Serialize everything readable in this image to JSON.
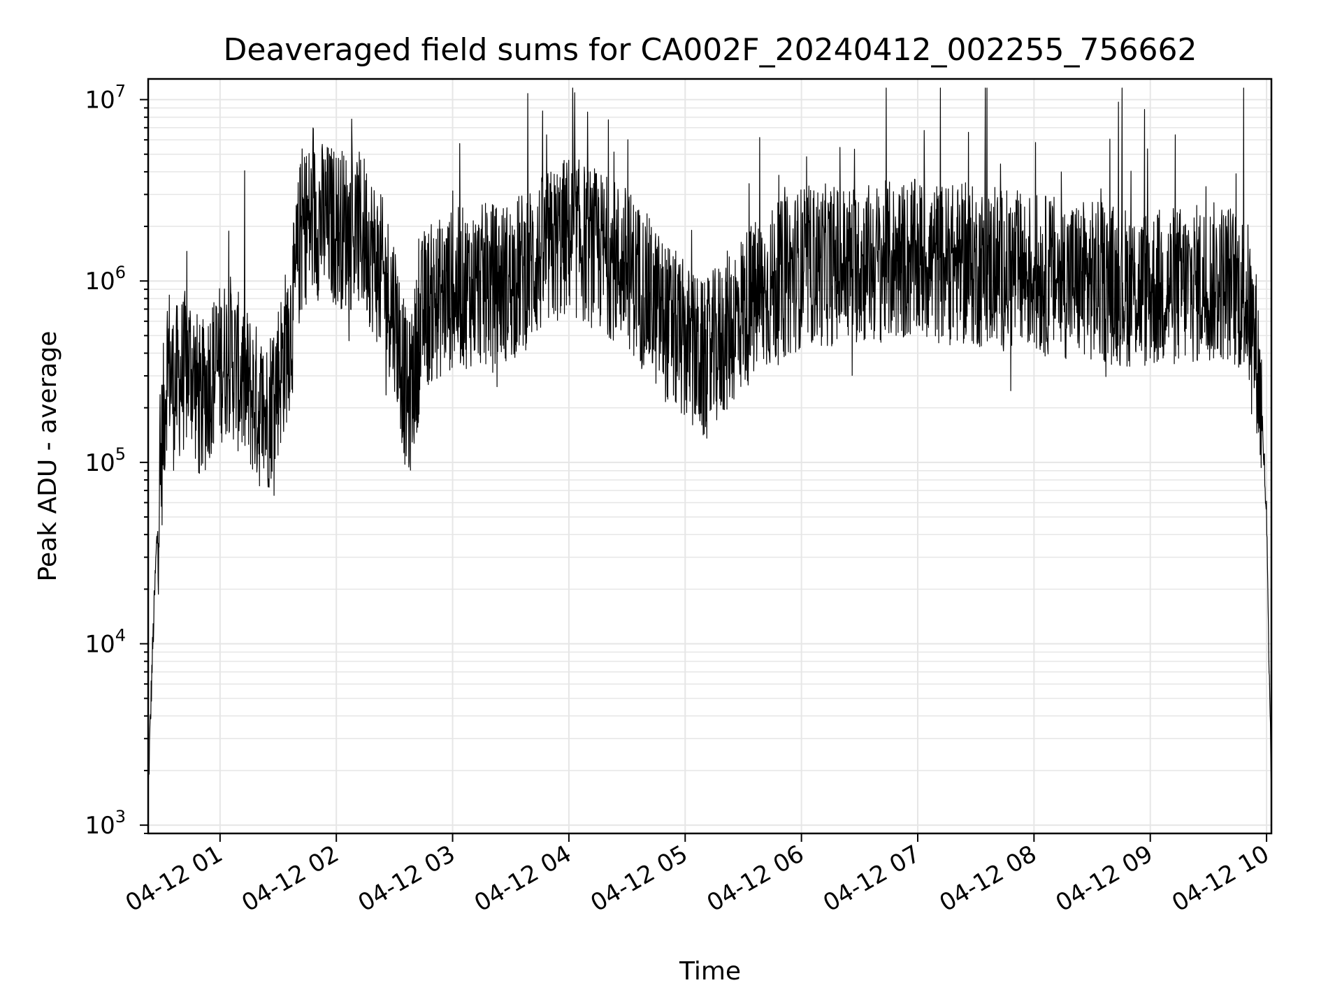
{
  "chart_data": {
    "type": "line",
    "title": "Deaveraged field sums for CA002F_20240412_002255_756662",
    "xlabel": "Time",
    "ylabel": "Peak ADU - average",
    "yscale": "log",
    "ylim": [
      900,
      13000000
    ],
    "xlim": [
      "2024-04-12 00:22:55",
      "2024-04-12 10:02:30"
    ],
    "grid": true,
    "series_color": "#000000",
    "x_tick_labels": [
      "04-12 01",
      "04-12 02",
      "04-12 03",
      "04-12 04",
      "04-12 05",
      "04-12 06",
      "04-12 07",
      "04-12 08",
      "04-12 09",
      "04-12 10"
    ],
    "x_tick_values": [
      "2024-04-12 01:00",
      "2024-04-12 02:00",
      "2024-04-12 03:00",
      "2024-04-12 04:00",
      "2024-04-12 05:00",
      "2024-04-12 06:00",
      "2024-04-12 07:00",
      "2024-04-12 08:00",
      "2024-04-12 09:00",
      "2024-04-12 10:00"
    ],
    "y_tick_values": [
      1000,
      10000,
      100000,
      1000000,
      10000000
    ],
    "y_tick_labels": [
      {
        "base": "10",
        "exp": "3"
      },
      {
        "base": "10",
        "exp": "4"
      },
      {
        "base": "10",
        "exp": "5"
      },
      {
        "base": "10",
        "exp": "6"
      },
      {
        "base": "10",
        "exp": "7"
      }
    ],
    "series": [
      {
        "x": [
          "2024-04-12 00:22:55",
          "2024-04-12 00:25",
          "2024-04-12 00:27",
          "2024-04-12 00:30",
          "2024-04-12 00:33",
          "2024-04-12 00:36",
          "2024-04-12 00:40",
          "2024-04-12 00:45",
          "2024-04-12 00:50",
          "2024-04-12 00:55",
          "2024-04-12 01:00",
          "2024-04-12 01:05",
          "2024-04-12 01:10",
          "2024-04-12 01:15",
          "2024-04-12 01:20",
          "2024-04-12 01:24",
          "2024-04-12 01:28",
          "2024-04-12 01:32",
          "2024-04-12 01:37",
          "2024-04-12 01:42",
          "2024-04-12 01:50",
          "2024-04-12 02:00",
          "2024-04-12 02:15",
          "2024-04-12 02:30",
          "2024-04-12 02:37",
          "2024-04-12 02:45",
          "2024-04-12 03:00",
          "2024-04-12 03:30",
          "2024-04-12 04:00",
          "2024-04-12 04:30",
          "2024-04-12 04:50",
          "2024-04-12 05:10",
          "2024-04-12 05:30",
          "2024-04-12 06:00",
          "2024-04-12 07:00",
          "2024-04-12 08:00",
          "2024-04-12 09:00",
          "2024-04-12 09:40",
          "2024-04-12 09:50",
          "2024-04-12 09:55",
          "2024-04-12 09:58",
          "2024-04-12 10:00",
          "2024-04-12 10:01",
          "2024-04-12 10:02:30"
        ],
        "y": [
          1500,
          8000,
          30000,
          120000,
          400000,
          250000,
          300000,
          350000,
          200000,
          300000,
          350000,
          400000,
          300000,
          250000,
          200000,
          180000,
          250000,
          350000,
          600000,
          2000000,
          2200000,
          2000000,
          1800000,
          700000,
          200000,
          700000,
          900000,
          1000000,
          1800000,
          1200000,
          600000,
          350000,
          700000,
          1200000,
          1300000,
          1100000,
          900000,
          1000000,
          800000,
          400000,
          150000,
          50000,
          10000,
          1500
        ]
      }
    ]
  }
}
